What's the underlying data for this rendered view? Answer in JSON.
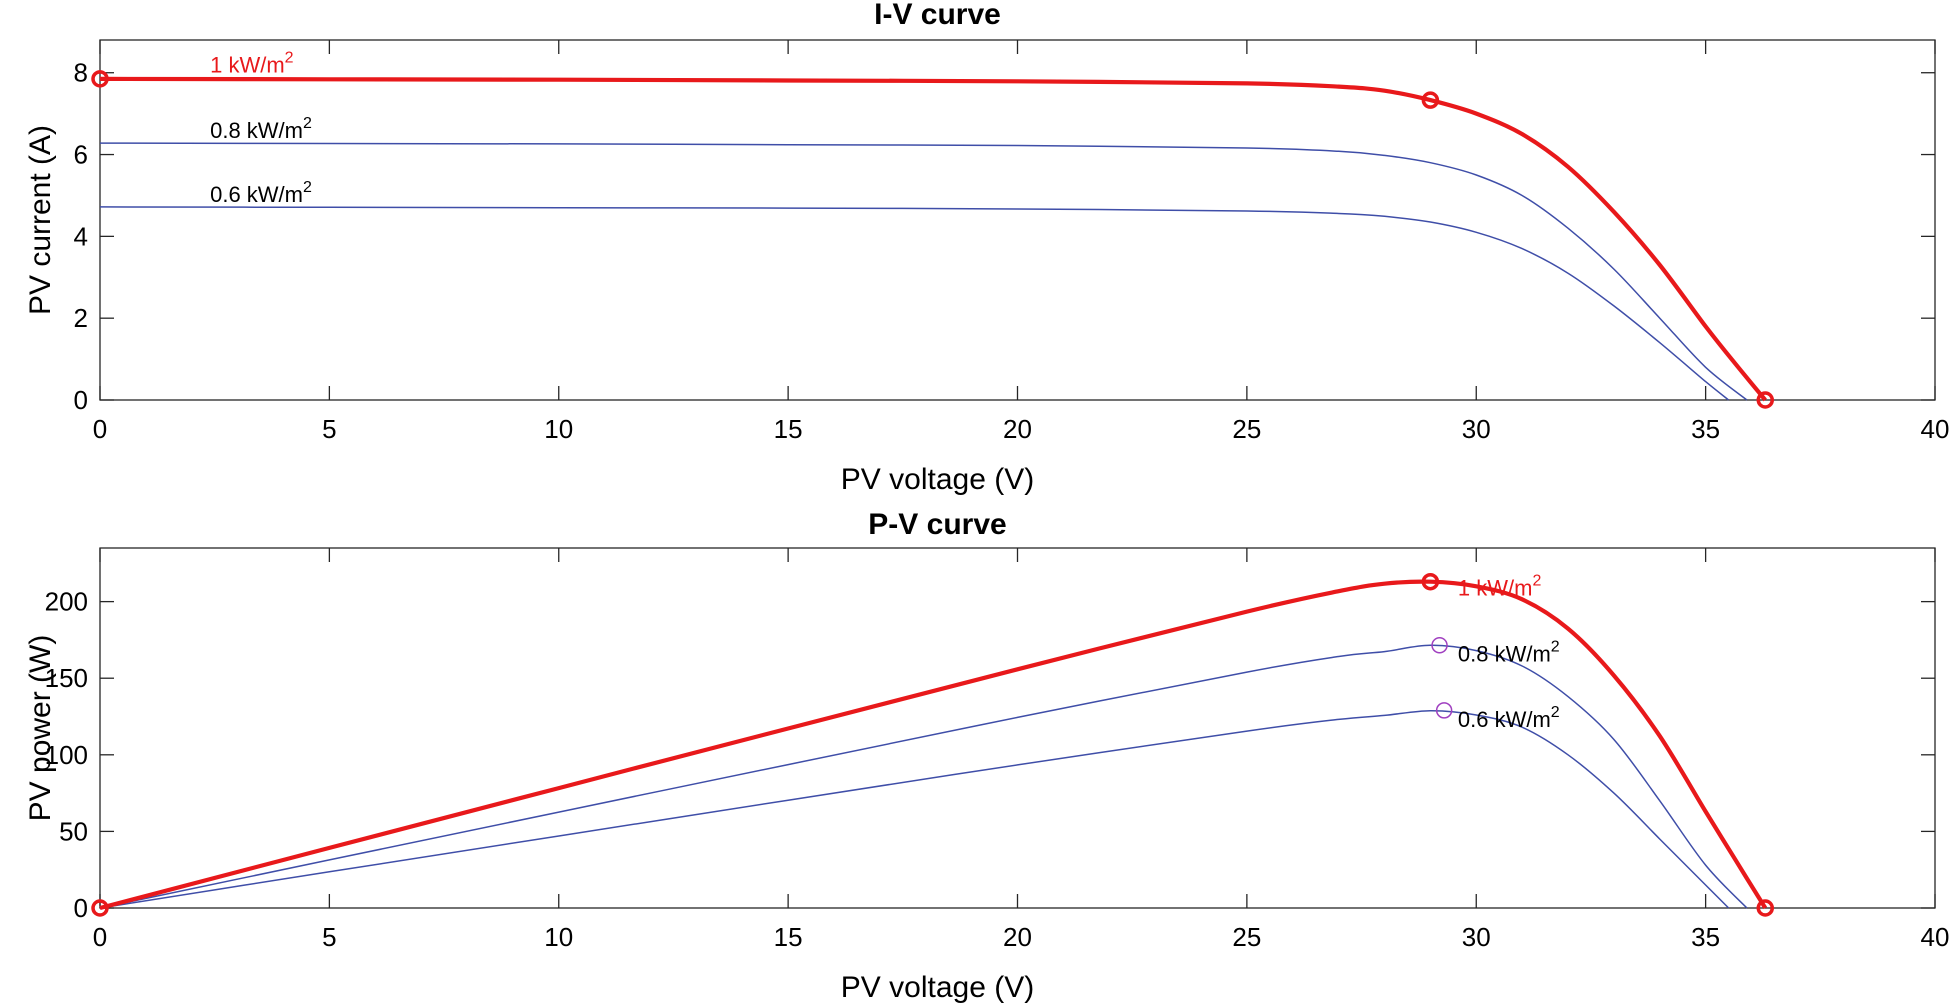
{
  "chart_data": [
    {
      "type": "line",
      "title": "I-V curve",
      "xlabel": "PV voltage (V)",
      "ylabel": "PV current (A)",
      "xlim": [
        0,
        40
      ],
      "ylim": [
        0,
        8.8
      ],
      "xticks": [
        "0",
        "5",
        "10",
        "15",
        "20",
        "25",
        "30",
        "35",
        "40"
      ],
      "yticks": [
        "0",
        "2",
        "4",
        "6",
        "8"
      ],
      "series": [
        {
          "name": "1 kW/m2",
          "color": "#e8191b",
          "x": [
            0,
            5,
            10,
            15,
            20,
            25,
            27,
            28,
            29,
            30,
            31,
            32,
            33,
            34,
            35,
            35.6,
            36.3
          ],
          "y": [
            7.85,
            7.84,
            7.83,
            7.81,
            7.79,
            7.74,
            7.66,
            7.56,
            7.33,
            7.0,
            6.5,
            5.7,
            4.6,
            3.3,
            1.8,
            0.95,
            0
          ]
        },
        {
          "name": "0.8 kW/m2",
          "color": "#3f4ea8",
          "x": [
            0,
            5,
            10,
            15,
            20,
            25,
            27,
            28,
            29,
            30,
            31,
            32,
            33,
            34,
            35,
            35.9
          ],
          "y": [
            6.28,
            6.27,
            6.26,
            6.24,
            6.22,
            6.16,
            6.08,
            5.98,
            5.8,
            5.5,
            5.0,
            4.2,
            3.2,
            2.0,
            0.8,
            0
          ]
        },
        {
          "name": "0.6 kW/m2",
          "color": "#3f4ea8",
          "x": [
            0,
            5,
            10,
            15,
            20,
            25,
            27,
            28,
            29,
            30,
            31,
            32,
            33,
            34,
            35,
            35.5
          ],
          "y": [
            4.72,
            4.71,
            4.7,
            4.69,
            4.67,
            4.62,
            4.56,
            4.49,
            4.35,
            4.1,
            3.7,
            3.1,
            2.3,
            1.4,
            0.45,
            0
          ]
        }
      ],
      "markers": [
        {
          "x": 0,
          "y": 7.85
        },
        {
          "x": 29.0,
          "y": 7.33
        },
        {
          "x": 36.3,
          "y": 0
        }
      ],
      "annotations": [
        {
          "text": "1 kW/m",
          "sup": "2",
          "x": 2.4,
          "y": 8.0,
          "color": "#e8191b"
        },
        {
          "text": "0.8 kW/m",
          "sup": "2",
          "x": 2.4,
          "y": 6.4,
          "color": "#000000"
        },
        {
          "text": "0.6 kW/m",
          "sup": "2",
          "x": 2.4,
          "y": 4.84,
          "color": "#000000"
        }
      ]
    },
    {
      "type": "line",
      "title": "P-V curve",
      "xlabel": "PV voltage (V)",
      "ylabel": "PV power (W)",
      "xlim": [
        0,
        40
      ],
      "ylim": [
        0,
        235
      ],
      "xticks": [
        "0",
        "5",
        "10",
        "15",
        "20",
        "25",
        "30",
        "35",
        "40"
      ],
      "yticks": [
        "0",
        "50",
        "100",
        "150",
        "200"
      ],
      "series": [
        {
          "name": "1 kW/m2",
          "color": "#e8191b",
          "x": [
            0,
            5,
            10,
            15,
            20,
            25,
            27,
            28,
            29,
            30,
            31,
            32,
            33,
            34,
            35,
            35.6,
            36.3
          ],
          "y": [
            0,
            39.2,
            78.3,
            117.2,
            155.8,
            193.5,
            206.8,
            211.7,
            213.0,
            210.0,
            201.5,
            182.4,
            151.8,
            112.2,
            63.0,
            33.8,
            0
          ]
        },
        {
          "name": "0.8 kW/m2",
          "color": "#3f4ea8",
          "x": [
            0,
            5,
            10,
            15,
            20,
            25,
            27,
            28,
            29,
            30,
            31,
            32,
            33,
            34,
            35,
            35.9
          ],
          "y": [
            0,
            31.4,
            62.6,
            93.6,
            124.4,
            154.0,
            164.2,
            167.4,
            171.5,
            168.0,
            158.0,
            138.0,
            110.0,
            70.0,
            28.0,
            0
          ]
        },
        {
          "name": "0.6 kW/m2",
          "color": "#3f4ea8",
          "x": [
            0,
            5,
            10,
            15,
            20,
            25,
            27,
            28,
            29,
            30,
            31,
            32,
            33,
            34,
            35,
            35.5
          ],
          "y": [
            0,
            23.6,
            47.0,
            70.4,
            93.4,
            115.5,
            123.1,
            125.7,
            128.8,
            126.0,
            118.0,
            100.0,
            75.0,
            45.0,
            15.0,
            0
          ]
        }
      ],
      "markers": [
        {
          "x": 0,
          "y": 0,
          "color": "#e8191b",
          "size": "large"
        },
        {
          "x": 29.0,
          "y": 213.0,
          "color": "#e8191b",
          "size": "large"
        },
        {
          "x": 36.3,
          "y": 0,
          "color": "#e8191b",
          "size": "large"
        },
        {
          "x": 29.2,
          "y": 171.5,
          "color": "#a040c0",
          "size": "small"
        },
        {
          "x": 29.3,
          "y": 129.0,
          "color": "#a040c0",
          "size": "small"
        }
      ],
      "annotations": [
        {
          "text": "1 kW/m",
          "sup": "2",
          "x": 29.6,
          "y": 204,
          "color": "#e8191b"
        },
        {
          "text": "0.8 kW/m",
          "sup": "2",
          "x": 29.6,
          "y": 161,
          "color": "#000000"
        },
        {
          "text": "0.6 kW/m",
          "sup": "2",
          "x": 29.6,
          "y": 118,
          "color": "#000000"
        }
      ]
    }
  ]
}
